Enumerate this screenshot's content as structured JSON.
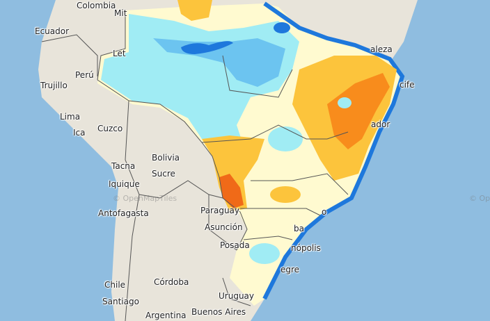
{
  "map": {
    "colors": {
      "ocean": "#8fbde0",
      "land": "#e8e4da",
      "border": "#555555",
      "anomaly_very_wet": "#1e78dc",
      "anomaly_wet": "#6cc4f0",
      "anomaly_slightly_wet": "#a0ecf4",
      "anomaly_neutral": "#fffad0",
      "anomaly_dry": "#fcc43c",
      "anomaly_very_dry": "#f88c1c",
      "anomaly_extreme_dry": "#f06a18"
    },
    "labels": [
      {
        "id": "colombia",
        "text": "Colombia"
      },
      {
        "id": "mitu",
        "text": "Mit"
      },
      {
        "id": "ecuador",
        "text": "Ecuador"
      },
      {
        "id": "leticia",
        "text": "Let"
      },
      {
        "id": "peru",
        "text": "Perú"
      },
      {
        "id": "trujillo",
        "text": "Trujillo"
      },
      {
        "id": "lima",
        "text": "Lima"
      },
      {
        "id": "ica",
        "text": "Ica"
      },
      {
        "id": "cuzco",
        "text": "Cuzco"
      },
      {
        "id": "bolivia",
        "text": "Bolivia"
      },
      {
        "id": "sucre",
        "text": "Sucre"
      },
      {
        "id": "tacna",
        "text": "Tacna"
      },
      {
        "id": "iquique",
        "text": "Iquique"
      },
      {
        "id": "antofagasta",
        "text": "Antofagasta"
      },
      {
        "id": "paraguay",
        "text": "Paraguay"
      },
      {
        "id": "asuncion",
        "text": "Asunción"
      },
      {
        "id": "posadas",
        "text": "Posada"
      },
      {
        "id": "chile",
        "text": "Chile"
      },
      {
        "id": "santiago",
        "text": "Santiago"
      },
      {
        "id": "cordoba",
        "text": "Córdoba"
      },
      {
        "id": "argentina",
        "text": "Argentina"
      },
      {
        "id": "uruguay",
        "text": "Uruguay"
      },
      {
        "id": "buenos-aires",
        "text": "Buenos Aires"
      },
      {
        "id": "fortaleza",
        "text": "aleza"
      },
      {
        "id": "recife",
        "text": "cife"
      },
      {
        "id": "salvador",
        "text": "ador"
      },
      {
        "id": "rio",
        "text": "o"
      },
      {
        "id": "curitiba",
        "text": "ba"
      },
      {
        "id": "florianopolis",
        "text": "nópolis"
      },
      {
        "id": "porto-alegre",
        "text": "egre"
      }
    ],
    "attribution": "© OpenMapTiles"
  }
}
